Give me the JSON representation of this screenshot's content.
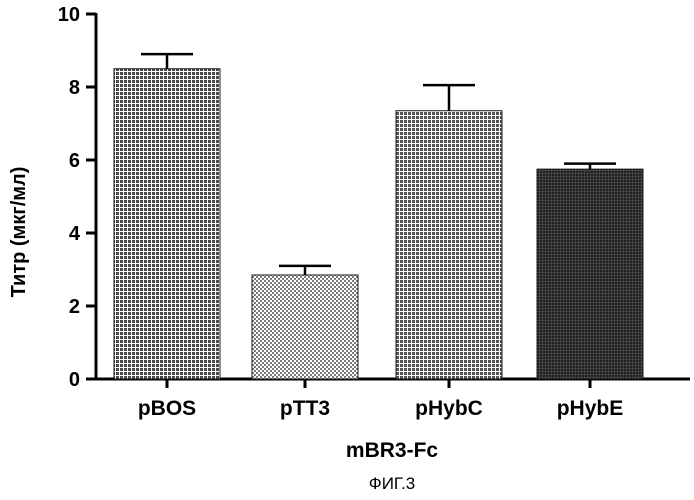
{
  "chart_data": {
    "type": "bar",
    "categories": [
      "pBOS",
      "pTT3",
      "pHybC",
      "pHybE"
    ],
    "values": [
      8.5,
      2.85,
      7.35,
      5.75
    ],
    "errors": [
      0.4,
      0.25,
      0.7,
      0.15
    ],
    "xlabel": "mBR3-Fc",
    "ylabel": "Титр (мкг/мл)",
    "ylim": [
      0,
      10
    ],
    "yticks": [
      0,
      2,
      4,
      6,
      8,
      10
    ],
    "grid": false,
    "bar_colors": [
      "#5e5e5e",
      "#a0a0a0",
      "#6a6a6a",
      "#2e2e2e"
    ]
  },
  "caption": "ФИГ.3"
}
